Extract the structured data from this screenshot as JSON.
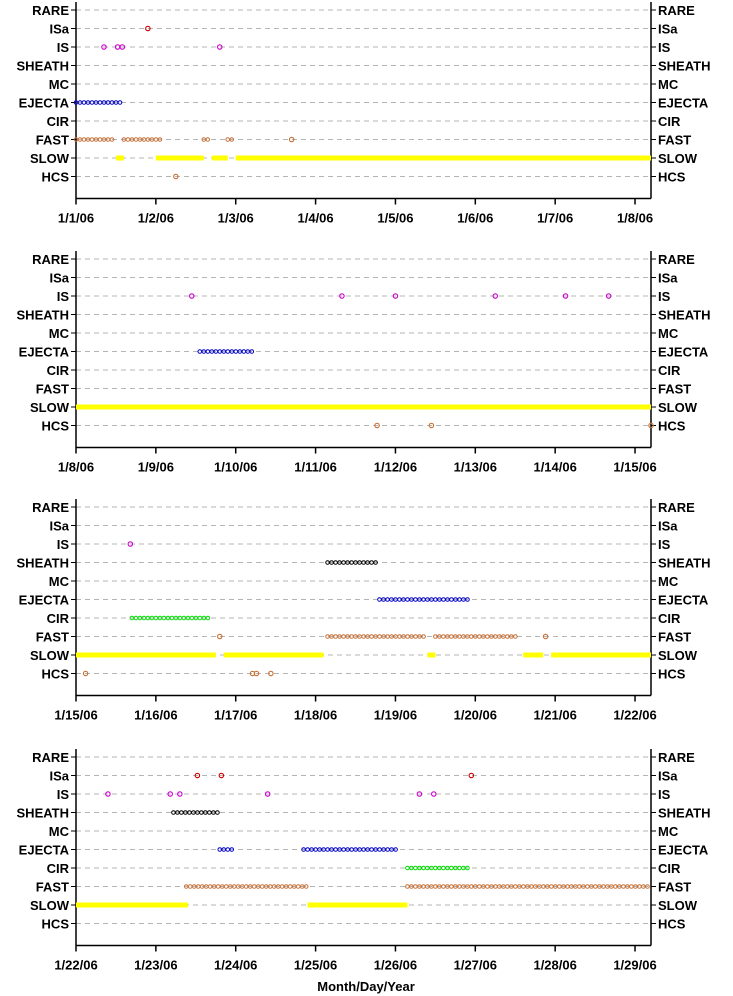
{
  "figure": {
    "xlabel": "Month/Day/Year"
  },
  "categories": [
    "RARE",
    "ISa",
    "IS",
    "SHEATH",
    "MC",
    "EJECTA",
    "CIR",
    "FAST",
    "SLOW",
    "HCS"
  ],
  "colors": {
    "SLOW": "#ffff00",
    "FAST": "#c87137",
    "CIR": "#00dd00",
    "EJECTA": "#0000cc",
    "MC": "#000000",
    "SHEATH": "#000000",
    "IS": "#cc00cc",
    "ISa": "#cc0000",
    "RARE": "#000000",
    "HCS": "#c87137"
  },
  "chart_data": [
    {
      "type": "scatter",
      "title": "",
      "xlabel": "",
      "ylabel": "",
      "x_ticks": [
        "1/1/06",
        "1/2/06",
        "1/3/06",
        "1/4/06",
        "1/5/06",
        "1/6/06",
        "1/7/06",
        "1/8/06"
      ],
      "xlim_days": [
        0,
        7.2
      ],
      "runs": [
        {
          "cat": "EJECTA",
          "start": 0.0,
          "end": 0.6
        },
        {
          "cat": "FAST",
          "start": 0.0,
          "end": 0.5
        },
        {
          "cat": "FAST",
          "start": 0.6,
          "end": 1.1
        },
        {
          "cat": "FAST",
          "start": 1.6,
          "end": 1.7
        },
        {
          "cat": "FAST",
          "start": 1.9,
          "end": 2.0
        },
        {
          "cat": "SLOW",
          "start": 0.5,
          "end": 0.6
        },
        {
          "cat": "SLOW",
          "start": 1.0,
          "end": 1.6
        },
        {
          "cat": "SLOW",
          "start": 1.7,
          "end": 1.9
        },
        {
          "cat": "SLOW",
          "start": 2.0,
          "end": 7.2
        }
      ],
      "points": [
        {
          "cat": "ISa",
          "x": 0.9
        },
        {
          "cat": "IS",
          "x": 0.35
        },
        {
          "cat": "IS",
          "x": 0.52
        },
        {
          "cat": "IS",
          "x": 0.58
        },
        {
          "cat": "IS",
          "x": 1.8
        },
        {
          "cat": "FAST",
          "x": 2.7
        },
        {
          "cat": "HCS",
          "x": 1.25
        }
      ]
    },
    {
      "type": "scatter",
      "title": "",
      "xlabel": "",
      "ylabel": "",
      "x_ticks": [
        "1/8/06",
        "1/9/06",
        "1/10/06",
        "1/11/06",
        "1/12/06",
        "1/13/06",
        "1/14/06",
        "1/15/06"
      ],
      "xlim_days": [
        0,
        7.2
      ],
      "runs": [
        {
          "cat": "EJECTA",
          "start": 1.55,
          "end": 2.25
        },
        {
          "cat": "SLOW",
          "start": 0.0,
          "end": 7.2
        }
      ],
      "points": [
        {
          "cat": "IS",
          "x": 1.45
        },
        {
          "cat": "IS",
          "x": 3.33
        },
        {
          "cat": "IS",
          "x": 4.0
        },
        {
          "cat": "IS",
          "x": 5.25
        },
        {
          "cat": "IS",
          "x": 6.13
        },
        {
          "cat": "IS",
          "x": 6.67
        },
        {
          "cat": "HCS",
          "x": 3.77
        },
        {
          "cat": "HCS",
          "x": 4.45
        },
        {
          "cat": "HCS",
          "x": 7.2
        }
      ]
    },
    {
      "type": "scatter",
      "title": "",
      "xlabel": "",
      "ylabel": "",
      "x_ticks": [
        "1/15/06",
        "1/16/06",
        "1/17/06",
        "1/18/06",
        "1/19/06",
        "1/20/06",
        "1/21/06",
        "1/22/06"
      ],
      "xlim_days": [
        0,
        7.2
      ],
      "runs": [
        {
          "cat": "SHEATH",
          "start": 3.15,
          "end": 3.8
        },
        {
          "cat": "EJECTA",
          "start": 3.8,
          "end": 4.95
        },
        {
          "cat": "CIR",
          "start": 0.7,
          "end": 1.7
        },
        {
          "cat": "FAST",
          "start": 3.15,
          "end": 4.4
        },
        {
          "cat": "FAST",
          "start": 4.5,
          "end": 5.55
        },
        {
          "cat": "SLOW",
          "start": 0.0,
          "end": 1.75
        },
        {
          "cat": "SLOW",
          "start": 1.85,
          "end": 3.1
        },
        {
          "cat": "SLOW",
          "start": 4.4,
          "end": 4.5
        },
        {
          "cat": "SLOW",
          "start": 5.6,
          "end": 5.85
        },
        {
          "cat": "SLOW",
          "start": 5.95,
          "end": 7.2
        }
      ],
      "points": [
        {
          "cat": "IS",
          "x": 0.68
        },
        {
          "cat": "FAST",
          "x": 1.8
        },
        {
          "cat": "FAST",
          "x": 5.88
        },
        {
          "cat": "HCS",
          "x": 0.12
        },
        {
          "cat": "HCS",
          "x": 2.21
        },
        {
          "cat": "HCS",
          "x": 2.26
        },
        {
          "cat": "HCS",
          "x": 2.44
        }
      ]
    },
    {
      "type": "scatter",
      "title": "",
      "xlabel": "",
      "ylabel": "",
      "x_ticks": [
        "1/22/06",
        "1/23/06",
        "1/24/06",
        "1/25/06",
        "1/26/06",
        "1/27/06",
        "1/28/06",
        "1/29/06"
      ],
      "xlim_days": [
        0,
        7.2
      ],
      "runs": [
        {
          "cat": "SHEATH",
          "start": 1.22,
          "end": 1.8
        },
        {
          "cat": "EJECTA",
          "start": 1.8,
          "end": 1.98
        },
        {
          "cat": "EJECTA",
          "start": 2.85,
          "end": 4.05
        },
        {
          "cat": "CIR",
          "start": 4.15,
          "end": 4.95
        },
        {
          "cat": "FAST",
          "start": 1.38,
          "end": 2.9
        },
        {
          "cat": "FAST",
          "start": 4.15,
          "end": 7.2
        },
        {
          "cat": "SLOW",
          "start": 0.0,
          "end": 1.4
        },
        {
          "cat": "SLOW",
          "start": 2.9,
          "end": 4.15
        }
      ],
      "points": [
        {
          "cat": "ISa",
          "x": 1.52
        },
        {
          "cat": "ISa",
          "x": 1.82
        },
        {
          "cat": "ISa",
          "x": 4.95
        },
        {
          "cat": "IS",
          "x": 0.4
        },
        {
          "cat": "IS",
          "x": 1.18
        },
        {
          "cat": "IS",
          "x": 1.3
        },
        {
          "cat": "IS",
          "x": 2.4
        },
        {
          "cat": "IS",
          "x": 4.3
        },
        {
          "cat": "IS",
          "x": 4.48
        }
      ]
    }
  ]
}
